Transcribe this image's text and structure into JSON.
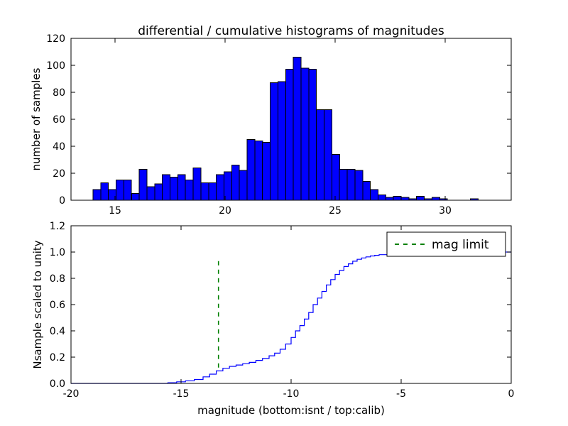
{
  "figure": {
    "title": "differential / cumulative histograms of magnitudes",
    "background_color": "#ffffff",
    "axes_color": "#000000"
  },
  "chart_data": [
    {
      "type": "bar",
      "role": "differential-histogram",
      "title": "differential / cumulative histograms of magnitudes",
      "xlabel": "",
      "ylabel": "number of samples",
      "xlim": [
        13,
        33
      ],
      "ylim": [
        0,
        120
      ],
      "xticks": [
        15,
        20,
        25,
        30
      ],
      "xtick_labels": [
        "15",
        "20",
        "25",
        "30"
      ],
      "yticks": [
        0,
        20,
        40,
        60,
        80,
        100,
        120
      ],
      "ytick_labels": [
        "0",
        "20",
        "40",
        "60",
        "80",
        "100",
        "120"
      ],
      "grid": false,
      "bar_fill_color": "#0000ff",
      "bar_edge_color": "#000000",
      "bin_start": 14.0,
      "bin_width": 0.35,
      "counts": [
        8,
        13,
        8,
        15,
        15,
        5,
        23,
        10,
        12,
        19,
        17,
        19,
        15,
        24,
        13,
        13,
        19,
        21,
        26,
        22,
        45,
        44,
        43,
        87,
        88,
        97,
        106,
        98,
        97,
        67,
        67,
        34,
        23,
        23,
        22,
        14,
        8,
        4,
        2,
        3,
        2,
        1,
        3,
        1,
        2,
        1,
        0,
        0,
        0,
        1
      ]
    },
    {
      "type": "line",
      "role": "cumulative-step",
      "xlabel": "magnitude (bottom:isnt / top:calib)",
      "ylabel": "Nsample scaled to unity",
      "xlim": [
        -20,
        0
      ],
      "ylim": [
        0,
        1.2
      ],
      "xticks": [
        -20,
        -15,
        -10,
        -5,
        0
      ],
      "xtick_labels": [
        "-20",
        "-15",
        "-10",
        "-5",
        "0"
      ],
      "yticks": [
        0,
        0.2,
        0.4,
        0.6,
        0.8,
        1.0,
        1.2
      ],
      "ytick_labels": [
        "0.0",
        "0.2",
        "0.4",
        "0.6",
        "0.8",
        "1.0",
        "1.2"
      ],
      "grid": false,
      "line_color": "#0000ff",
      "step_style": "post",
      "points": [
        [
          -20,
          0
        ],
        [
          -16,
          0
        ],
        [
          -15.6,
          0.005
        ],
        [
          -15.2,
          0.012
        ],
        [
          -14.8,
          0.02
        ],
        [
          -14.4,
          0.03
        ],
        [
          -14,
          0.05
        ],
        [
          -13.7,
          0.07
        ],
        [
          -13.4,
          0.095
        ],
        [
          -13.1,
          0.115
        ],
        [
          -12.8,
          0.13
        ],
        [
          -12.5,
          0.14
        ],
        [
          -12.2,
          0.15
        ],
        [
          -11.9,
          0.16
        ],
        [
          -11.6,
          0.175
        ],
        [
          -11.3,
          0.19
        ],
        [
          -11,
          0.21
        ],
        [
          -10.75,
          0.23
        ],
        [
          -10.5,
          0.26
        ],
        [
          -10.25,
          0.3
        ],
        [
          -10,
          0.35
        ],
        [
          -9.8,
          0.4
        ],
        [
          -9.6,
          0.44
        ],
        [
          -9.4,
          0.49
        ],
        [
          -9.2,
          0.54
        ],
        [
          -9,
          0.6
        ],
        [
          -8.8,
          0.65
        ],
        [
          -8.6,
          0.7
        ],
        [
          -8.4,
          0.75
        ],
        [
          -8.2,
          0.79
        ],
        [
          -8,
          0.83
        ],
        [
          -7.8,
          0.86
        ],
        [
          -7.6,
          0.89
        ],
        [
          -7.4,
          0.91
        ],
        [
          -7.2,
          0.93
        ],
        [
          -7,
          0.945
        ],
        [
          -6.8,
          0.955
        ],
        [
          -6.6,
          0.963
        ],
        [
          -6.4,
          0.97
        ],
        [
          -6.2,
          0.975
        ],
        [
          -6,
          0.98
        ],
        [
          -5.6,
          0.985
        ],
        [
          -5.2,
          0.99
        ],
        [
          -4.8,
          0.993
        ],
        [
          -4.4,
          0.996
        ],
        [
          -4,
          0.998
        ],
        [
          -3.5,
          1
        ],
        [
          0,
          1
        ]
      ],
      "mag_limit": {
        "x": -13.3,
        "y_start": 0.12,
        "y_end": 0.96,
        "color": "#008000",
        "dash": "6,6",
        "label": "mag limit"
      },
      "legend": {
        "label": "mag limit",
        "position": "upper right"
      }
    }
  ]
}
